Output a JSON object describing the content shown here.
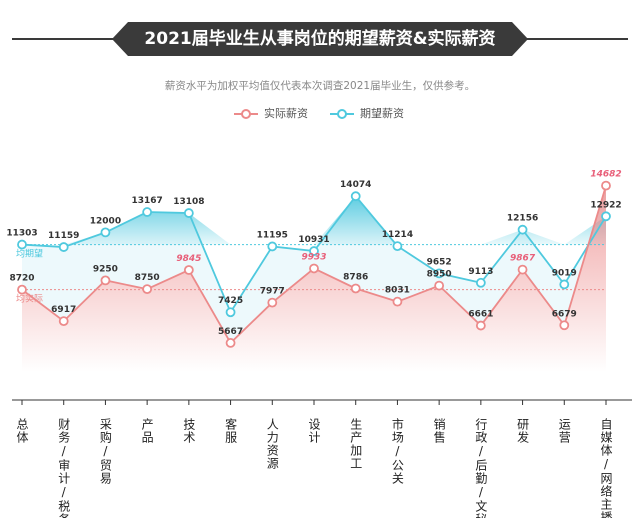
{
  "header": {
    "title": "2021届毕业生从事岗位的期望薪资&实际薪资",
    "subtitle": "薪资水平为加权平均值仅代表本次调查2021届毕业生，仅供参考。"
  },
  "colors": {
    "expected": "#4fc9de",
    "actual": "#ec8a8a",
    "highlight": "#e8607a",
    "title_bg": "#3a3a3a"
  },
  "chart_data": {
    "type": "line",
    "categories": [
      "总体",
      "财务/审计/税务",
      "采购/贸易",
      "产品",
      "技术",
      "客服",
      "人力资源",
      "设计",
      "生产加工",
      "市场/公关",
      "销售",
      "行政/后勤/文秘",
      "研发",
      "运营",
      "自媒体/网络主播"
    ],
    "series": [
      {
        "name": "期望薪资",
        "values": [
          11303,
          11159,
          12000,
          13167,
          13108,
          7425,
          11195,
          10931,
          14074,
          11214,
          9652,
          9113,
          12156,
          9019,
          12922
        ],
        "labels": [
          "11303",
          "11159",
          "12000",
          "13167",
          "13108",
          "7425",
          "11195",
          "10931",
          "14074",
          "11214",
          "9652",
          "9113",
          "12156",
          "9019",
          "12922"
        ],
        "average_label": "均期望",
        "average_value": 11303
      },
      {
        "name": "实际薪资",
        "values": [
          8720,
          6917,
          9250,
          8750,
          9845,
          5667,
          7977,
          9933,
          8786,
          8031,
          8950,
          6661,
          9867,
          6679,
          14682
        ],
        "labels": [
          "8720",
          "6917",
          "9250",
          "8750",
          "9845",
          "5667",
          "7977",
          "9933",
          "8786",
          "8031",
          "8950",
          "6661",
          "9867",
          "6679",
          "14682"
        ],
        "highlighted_indices": [
          4,
          7,
          12,
          14
        ],
        "average_label": "均实际",
        "average_value": 8720
      }
    ],
    "legend": [
      "实际薪资",
      "期望薪资"
    ],
    "legend_position": "top-center",
    "ylim": [
      4000,
      16000
    ],
    "grid": false
  }
}
